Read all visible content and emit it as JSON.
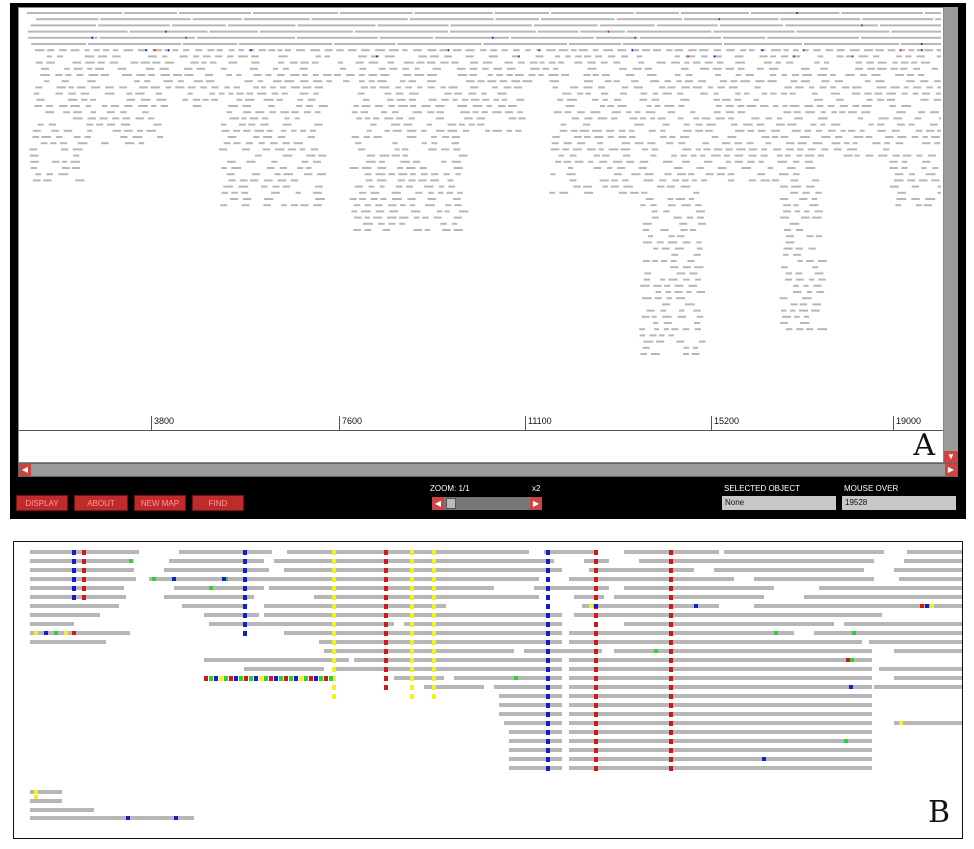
{
  "panel_a": {
    "label": "A",
    "axis_ticks": [
      "3800",
      "7600",
      "11100",
      "15200",
      "19000"
    ],
    "buttons": [
      "DISPLAY",
      "ABOUT",
      "NEW MAP",
      "FIND"
    ],
    "zoom_label": "ZOOM: 1/1",
    "zoom_max": "x2",
    "selected_object_label": "SELECTED OBJECT",
    "selected_object_value": "None",
    "mouse_over_label": "MOUSE OVER",
    "mouse_over_value": "19528"
  },
  "panel_b": {
    "label": "B"
  },
  "colors": {
    "read": "#b7b7b7",
    "mismatch_blue": "#1020c8",
    "mismatch_red": "#d01818",
    "mismatch_yellow": "#f5f020",
    "mismatch_green": "#30d030",
    "button_red": "#bf2a2a"
  }
}
